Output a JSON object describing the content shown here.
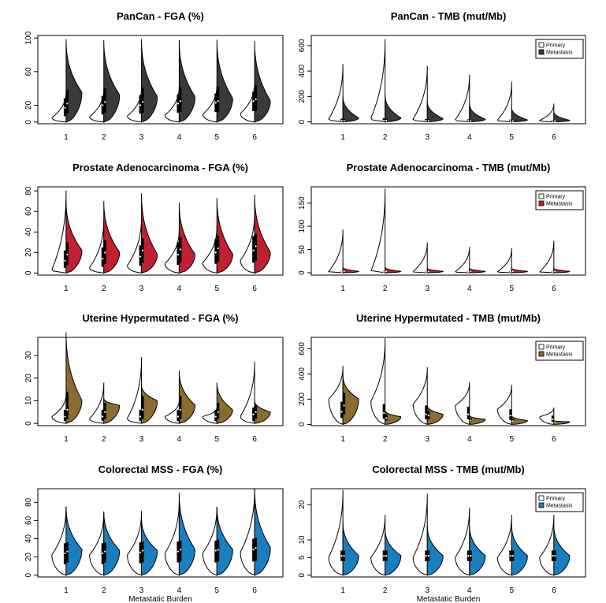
{
  "chart_data": [
    {
      "type": "violin",
      "title": "PanCan - FGA (%)",
      "xlabel": "",
      "categories": [
        "1",
        "2",
        "3",
        "4",
        "5",
        "6"
      ],
      "yticks": [
        "0",
        "20",
        "60",
        "100"
      ],
      "ylim": [
        -2,
        103
      ],
      "legend": null,
      "colors": {
        "primary": "#ffffff",
        "metastasis": "#3a3a3a"
      },
      "series": [
        {
          "name": "Primary",
          "max": [
            36,
            39,
            40,
            42,
            44,
            47
          ],
          "mode": [
            5,
            6,
            7,
            8,
            9,
            10
          ],
          "median": [
            17,
            20,
            20,
            22,
            23,
            25
          ],
          "q1": [
            7,
            9,
            10,
            11,
            12,
            13
          ],
          "q3": [
            28,
            31,
            32,
            33,
            34,
            36
          ]
        },
        {
          "name": "Metastasis",
          "max": [
            98,
            97,
            98,
            97,
            98,
            96
          ],
          "mode": [
            35,
            32,
            30,
            30,
            28,
            25
          ],
          "median": [
            22,
            24,
            24,
            25,
            25,
            27
          ],
          "q1": [
            10,
            11,
            11,
            12,
            12,
            13
          ],
          "q3": [
            38,
            40,
            41,
            41,
            42,
            44
          ]
        }
      ]
    },
    {
      "type": "violin",
      "title": "PanCan - TMB (mut/Mb)",
      "xlabel": "",
      "categories": [
        "1",
        "2",
        "3",
        "4",
        "5",
        "6"
      ],
      "yticks": [
        "0",
        "200",
        "400",
        "600"
      ],
      "ylim": [
        -15,
        680
      ],
      "legend": {
        "position": "top-right",
        "entries": [
          "Primary",
          "Metastasis"
        ]
      },
      "colors": {
        "primary": "#ffffff",
        "metastasis": "#3a3a3a"
      },
      "series": [
        {
          "name": "Primary",
          "max": [
            450,
            650,
            440,
            370,
            310,
            140
          ],
          "mode": [
            20,
            25,
            20,
            15,
            12,
            10
          ],
          "median": [
            8,
            9,
            8,
            7,
            6,
            5
          ],
          "q1": [
            3,
            3,
            3,
            3,
            2,
            2
          ],
          "q3": [
            25,
            28,
            22,
            20,
            18,
            15
          ]
        },
        {
          "name": "Metastasis",
          "max": [
            200,
            210,
            160,
            140,
            110,
            80
          ],
          "mode": [
            30,
            30,
            25,
            20,
            15,
            12
          ],
          "median": [
            8,
            9,
            8,
            7,
            6,
            5
          ],
          "q1": [
            3,
            3,
            3,
            3,
            2,
            2
          ],
          "q3": [
            22,
            25,
            20,
            18,
            15,
            12
          ]
        }
      ]
    },
    {
      "type": "violin",
      "title": "Prostate Adenocarcinoma - FGA (%)",
      "xlabel": "",
      "categories": [
        "1",
        "2",
        "3",
        "4",
        "5",
        "6"
      ],
      "yticks": [
        "0",
        "20",
        "40",
        "60",
        "80"
      ],
      "ylim": [
        -2,
        84
      ],
      "legend": null,
      "colors": {
        "primary": "#ffffff",
        "metastasis": "#c0202f"
      },
      "series": [
        {
          "name": "Primary",
          "max": [
            80,
            52,
            55,
            42,
            45,
            58
          ],
          "mode": [
            3,
            5,
            7,
            9,
            10,
            12
          ],
          "median": [
            12,
            14,
            16,
            18,
            20,
            22
          ],
          "q1": [
            5,
            6,
            7,
            8,
            9,
            10
          ],
          "q3": [
            22,
            25,
            27,
            30,
            33,
            36
          ]
        },
        {
          "name": "Metastasis",
          "max": [
            70,
            70,
            77,
            68,
            73,
            76
          ],
          "mode": [
            22,
            20,
            18,
            18,
            18,
            20
          ],
          "median": [
            18,
            20,
            22,
            23,
            24,
            26
          ],
          "q1": [
            8,
            9,
            10,
            10,
            11,
            12
          ],
          "q3": [
            30,
            32,
            34,
            35,
            36,
            38
          ]
        }
      ]
    },
    {
      "type": "violin",
      "title": "Prostate Adenocarcinoma - TMB (mut/Mb)",
      "xlabel": "",
      "categories": [
        "1",
        "2",
        "3",
        "4",
        "5",
        "6"
      ],
      "yticks": [
        "0",
        "50",
        "100",
        "150"
      ],
      "ylim": [
        -5,
        185
      ],
      "legend": {
        "position": "top-right",
        "entries": [
          "Primary",
          "Metastasis"
        ]
      },
      "colors": {
        "primary": "#ffffff",
        "metastasis": "#c0202f"
      },
      "series": [
        {
          "name": "Primary",
          "max": [
            92,
            180,
            65,
            55,
            52,
            68
          ],
          "mode": [
            2,
            2,
            2,
            2,
            2,
            2
          ],
          "median": [
            2,
            2,
            2,
            2,
            2,
            2
          ],
          "q1": [
            1,
            1,
            1,
            1,
            1,
            1
          ],
          "q3": [
            4,
            4,
            4,
            4,
            4,
            4
          ]
        },
        {
          "name": "Metastasis",
          "max": [
            12,
            12,
            10,
            10,
            10,
            10
          ],
          "mode": [
            3,
            3,
            3,
            3,
            3,
            3
          ],
          "median": [
            3,
            3,
            3,
            3,
            3,
            3
          ],
          "q1": [
            1,
            1,
            1,
            1,
            1,
            1
          ],
          "q3": [
            5,
            5,
            5,
            5,
            5,
            5
          ]
        }
      ]
    },
    {
      "type": "violin",
      "title": "Uterine Hypermutated - FGA (%)",
      "xlabel": "",
      "categories": [
        "1",
        "2",
        "3",
        "4",
        "5",
        "6"
      ],
      "yticks": [
        "0",
        "10",
        "20",
        "30"
      ],
      "ylim": [
        -1,
        38
      ],
      "legend": null,
      "colors": {
        "primary": "#ffffff",
        "metastasis": "#8b6b2f"
      },
      "series": [
        {
          "name": "Primary",
          "max": [
            13,
            18,
            29,
            10,
            7,
            27
          ],
          "mode": [
            3,
            2,
            2,
            3,
            3,
            3
          ],
          "median": [
            3,
            3,
            3,
            3,
            3,
            4
          ],
          "q1": [
            1,
            1,
            1,
            1,
            1,
            1
          ],
          "q3": [
            6,
            6,
            6,
            6,
            6,
            7
          ]
        },
        {
          "name": "Metastasis",
          "max": [
            40,
            11,
            17,
            23,
            18,
            10
          ],
          "mode": [
            10,
            8,
            10,
            8,
            6,
            5
          ],
          "median": [
            6,
            5,
            6,
            6,
            5,
            5
          ],
          "q1": [
            2,
            2,
            2,
            2,
            2,
            2
          ],
          "q3": [
            14,
            9,
            12,
            12,
            9,
            8
          ]
        }
      ]
    },
    {
      "type": "violin",
      "title": "Uterine Hypermutated - TMB (mut/Mb)",
      "xlabel": "",
      "categories": [
        "1",
        "2",
        "3",
        "4",
        "5",
        "6"
      ],
      "yticks": [
        "0",
        "200",
        "400",
        "600"
      ],
      "ylim": [
        -10,
        690
      ],
      "legend": {
        "position": "top-right",
        "entries": [
          "Primary",
          "Metastasis"
        ]
      },
      "colors": {
        "primary": "#ffffff",
        "metastasis": "#8b6b2f"
      },
      "series": [
        {
          "name": "Primary",
          "max": [
            460,
            680,
            450,
            330,
            310,
            130
          ],
          "mode": [
            200,
            180,
            160,
            150,
            120,
            60
          ],
          "median": [
            100,
            90,
            80,
            80,
            70,
            40
          ],
          "q1": [
            50,
            45,
            40,
            40,
            35,
            20
          ],
          "q3": [
            180,
            160,
            150,
            140,
            120,
            70
          ]
        },
        {
          "name": "Metastasis",
          "max": [
            390,
            110,
            150,
            70,
            70,
            30
          ],
          "mode": [
            200,
            60,
            80,
            40,
            30,
            20
          ],
          "median": [
            150,
            50,
            70,
            30,
            25,
            15
          ],
          "q1": [
            80,
            30,
            40,
            20,
            15,
            10
          ],
          "q3": [
            250,
            80,
            110,
            50,
            45,
            22
          ]
        }
      ]
    },
    {
      "type": "violin",
      "title": "Colorectal MSS - FGA (%)",
      "xlabel": "Metastatic Burden",
      "categories": [
        "1",
        "2",
        "3",
        "4",
        "5",
        "6"
      ],
      "yticks": [
        "0",
        "20",
        "40",
        "60",
        "80"
      ],
      "ylim": [
        -2,
        95
      ],
      "legend": null,
      "colors": {
        "primary": "#ffffff",
        "metastasis": "#1a7fbf"
      },
      "series": [
        {
          "name": "Primary",
          "max": [
            75,
            68,
            70,
            82,
            75,
            95
          ],
          "mode": [
            22,
            22,
            22,
            24,
            24,
            25
          ],
          "median": [
            24,
            24,
            25,
            26,
            27,
            28
          ],
          "q1": [
            12,
            12,
            13,
            14,
            14,
            15
          ],
          "q3": [
            35,
            35,
            36,
            37,
            38,
            40
          ]
        },
        {
          "name": "Metastasis",
          "max": [
            75,
            70,
            62,
            90,
            75,
            95
          ],
          "mode": [
            28,
            27,
            27,
            28,
            28,
            30
          ],
          "median": [
            26,
            26,
            27,
            28,
            28,
            30
          ],
          "q1": [
            14,
            14,
            14,
            15,
            15,
            16
          ],
          "q3": [
            36,
            36,
            37,
            38,
            39,
            41
          ]
        }
      ]
    },
    {
      "type": "violin",
      "title": "Colorectal MSS - TMB (mut/Mb)",
      "xlabel": "Metastatic Burden",
      "categories": [
        "1",
        "2",
        "3",
        "4",
        "5",
        "6"
      ],
      "yticks": [
        "0",
        "5",
        "10",
        "20"
      ],
      "ylim": [
        -0.5,
        24.5
      ],
      "legend": {
        "position": "top-right",
        "entries": [
          "Primary",
          "Metastasis"
        ]
      },
      "colors": {
        "primary": "#ffffff",
        "metastasis": "#1a7fbf"
      },
      "series": [
        {
          "name": "Primary",
          "max": [
            24,
            17,
            23,
            19,
            17,
            17
          ],
          "mode": [
            5,
            5,
            5,
            5,
            5,
            5
          ],
          "median": [
            5.5,
            5.5,
            5.5,
            5.5,
            5.5,
            5.5
          ],
          "q1": [
            4,
            4,
            4,
            4,
            4,
            4
          ],
          "q3": [
            7,
            7,
            7,
            7,
            7,
            7
          ]
        },
        {
          "name": "Metastasis",
          "max": [
            15,
            13,
            14,
            14,
            14,
            14
          ],
          "mode": [
            5.5,
            5.5,
            5.5,
            5.5,
            5.5,
            5.5
          ],
          "median": [
            5.5,
            5.5,
            5.5,
            5.5,
            5.5,
            5.5
          ],
          "q1": [
            4,
            4,
            4,
            4,
            4,
            4
          ],
          "q3": [
            7,
            7,
            7,
            7,
            7,
            7
          ]
        }
      ]
    }
  ]
}
